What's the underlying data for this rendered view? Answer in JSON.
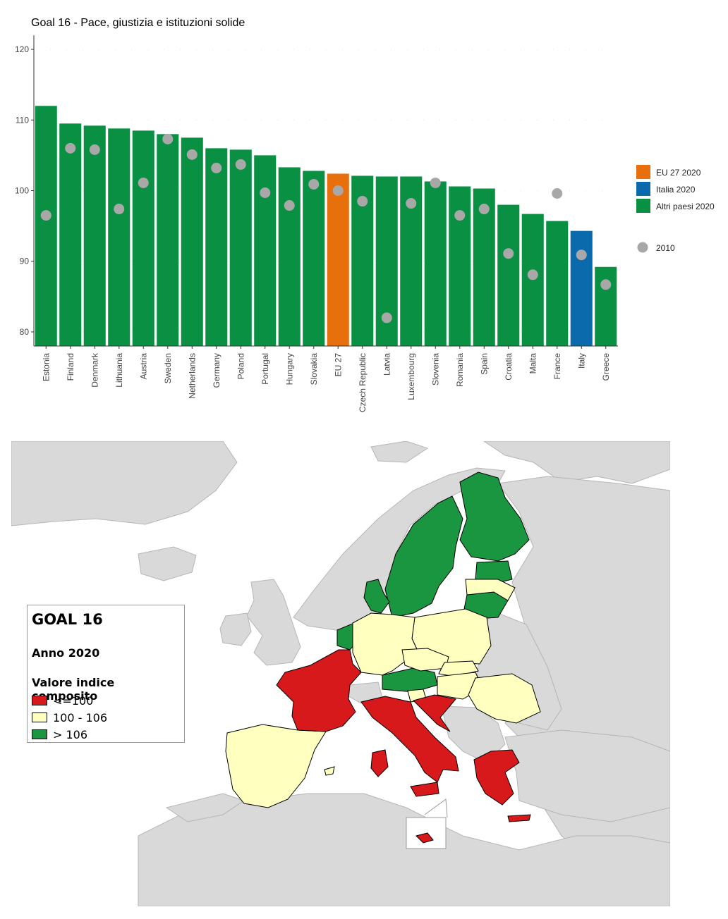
{
  "chart_data": {
    "type": "bar",
    "title": "Goal 16 - Pace, giustizia e istituzioni solide",
    "xlabel": "",
    "ylabel": "",
    "ylim": [
      78,
      122
    ],
    "yticks": [
      80,
      90,
      100,
      110,
      120
    ],
    "categories": [
      "Estonia",
      "Finland",
      "Denmark",
      "Lithuania",
      "Austria",
      "Sweden",
      "Netherlands",
      "Germany",
      "Poland",
      "Portugal",
      "Hungary",
      "Slovakia",
      "EU 27",
      "Czech Republic",
      "Latvia",
      "Luxembourg",
      "Slovenia",
      "Romania",
      "Spain",
      "Croatia",
      "Malta",
      "France",
      "Italy",
      "Greece"
    ],
    "series": [
      {
        "name": "2020",
        "values": [
          112.0,
          109.5,
          109.2,
          108.8,
          108.5,
          108.0,
          107.5,
          106.0,
          105.8,
          105.0,
          103.3,
          102.8,
          102.4,
          102.1,
          102.0,
          102.0,
          101.3,
          100.6,
          100.3,
          98.0,
          96.7,
          95.7,
          94.3,
          89.2
        ]
      },
      {
        "name": "2010",
        "values": [
          96.5,
          106.0,
          105.8,
          97.4,
          101.1,
          107.3,
          105.1,
          103.2,
          103.7,
          99.7,
          97.9,
          100.9,
          100.0,
          98.5,
          82.0,
          98.2,
          101.1,
          96.5,
          97.4,
          91.1,
          88.1,
          99.6,
          90.9,
          86.7
        ]
      }
    ],
    "bar_group": [
      "other",
      "other",
      "other",
      "other",
      "other",
      "other",
      "other",
      "other",
      "other",
      "other",
      "other",
      "other",
      "eu",
      "other",
      "other",
      "other",
      "other",
      "other",
      "other",
      "other",
      "other",
      "other",
      "italy",
      "other"
    ],
    "legend": [
      {
        "label": "EU 27 2020",
        "color": "#e8700c"
      },
      {
        "label": "Italia 2020",
        "color": "#0a6aab"
      },
      {
        "label": "Altri paesi 2020",
        "color": "#0a9042"
      },
      {
        "label": "2010",
        "color": "#a8a8a8"
      }
    ],
    "legend_position": "right",
    "grid": true
  },
  "map": {
    "title": "GOAL 16",
    "year": "Anno 2020",
    "subtitle": "Valore indice composito",
    "classes": [
      {
        "label": "<=100",
        "color": "#d7191c"
      },
      {
        "label": "100 - 106",
        "color": "#ffffc0"
      },
      {
        "label": "> 106",
        "color": "#1a9641"
      }
    ],
    "non_eu_color": "#d9d9d9",
    "sea_color": "#ffffff"
  }
}
